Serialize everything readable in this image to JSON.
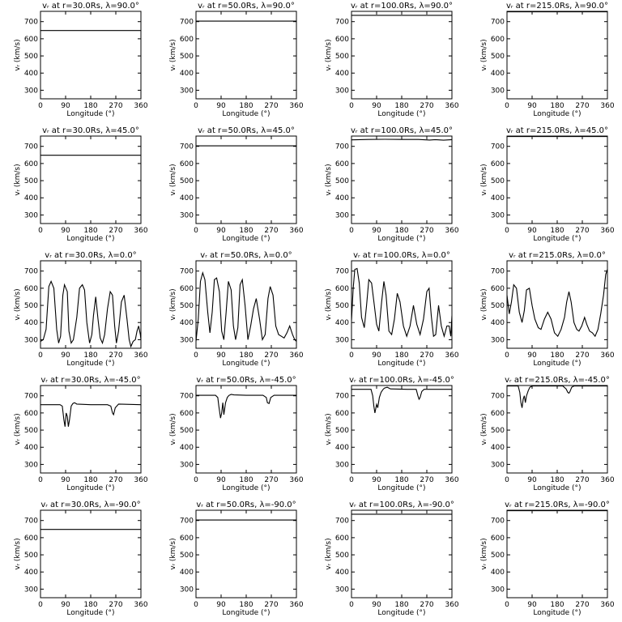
{
  "figure": {
    "xlabel": "Longitude (°)",
    "ylabel": "vᵣ (km/s)",
    "xticks": [
      0,
      90,
      180,
      270,
      360
    ],
    "yticks": [
      300,
      400,
      500,
      600,
      700
    ],
    "xlim": [
      0,
      360
    ],
    "ylim": [
      250,
      760
    ]
  },
  "chart_data": [
    {
      "type": "line",
      "title": "vᵣ at r=30.0Rs, λ=90.0°",
      "x": [
        0,
        360
      ],
      "y": [
        648,
        648
      ]
    },
    {
      "type": "line",
      "title": "vᵣ at r=50.0Rs, λ=90.0°",
      "x": [
        0,
        360
      ],
      "y": [
        703,
        703
      ]
    },
    {
      "type": "line",
      "title": "vᵣ at r=100.0Rs, λ=90.0°",
      "x": [
        0,
        360
      ],
      "y": [
        737,
        737
      ]
    },
    {
      "type": "line",
      "title": "vᵣ at r=215.0Rs, λ=90.0°",
      "x": [
        0,
        360
      ],
      "y": [
        757,
        757
      ]
    },
    {
      "type": "line",
      "title": "vᵣ at r=30.0Rs, λ=45.0°",
      "x": [
        0,
        360
      ],
      "y": [
        648,
        648
      ]
    },
    {
      "type": "line",
      "title": "vᵣ at r=50.0Rs, λ=45.0°",
      "x": [
        0,
        360
      ],
      "y": [
        703,
        703
      ]
    },
    {
      "type": "line",
      "title": "vᵣ at r=100.0Rs, λ=45.0°",
      "x": [
        0,
        60,
        120,
        180,
        240,
        280,
        300,
        330,
        360
      ],
      "y": [
        738,
        740,
        741,
        740,
        740,
        737,
        739,
        736,
        739
      ]
    },
    {
      "type": "line",
      "title": "vᵣ at r=215.0Rs, λ=45.0°",
      "x": [
        0,
        360
      ],
      "y": [
        757,
        757
      ]
    },
    {
      "type": "line",
      "title": "vᵣ at r=30.0Rs, λ=0.0°",
      "x": [
        0,
        10,
        20,
        30,
        38,
        48,
        58,
        65,
        72,
        80,
        86,
        96,
        102,
        110,
        118,
        130,
        140,
        150,
        158,
        166,
        176,
        184,
        190,
        198,
        206,
        214,
        222,
        230,
        240,
        250,
        258,
        266,
        272,
        280,
        290,
        300,
        310,
        318,
        324,
        332,
        340,
        346,
        352,
        358,
        360
      ],
      "y": [
        290,
        300,
        360,
        610,
        640,
        600,
        360,
        280,
        320,
        560,
        620,
        580,
        350,
        280,
        300,
        430,
        600,
        620,
        590,
        400,
        280,
        330,
        440,
        550,
        420,
        310,
        280,
        330,
        480,
        580,
        560,
        380,
        280,
        350,
        520,
        560,
        420,
        300,
        260,
        290,
        300,
        350,
        380,
        330,
        300
      ]
    },
    {
      "type": "line",
      "title": "vᵣ at r=50.0Rs, λ=0.0°",
      "x": [
        0,
        8,
        16,
        24,
        32,
        42,
        50,
        58,
        66,
        74,
        84,
        92,
        100,
        108,
        116,
        126,
        134,
        142,
        150,
        158,
        166,
        176,
        186,
        196,
        206,
        216,
        228,
        238,
        248,
        258,
        266,
        276,
        286,
        296,
        306,
        316,
        326,
        336,
        346,
        354,
        360
      ],
      "y": [
        290,
        420,
        640,
        690,
        650,
        460,
        340,
        460,
        650,
        660,
        580,
        350,
        300,
        460,
        640,
        590,
        380,
        300,
        370,
        620,
        650,
        500,
        300,
        380,
        480,
        540,
        420,
        300,
        330,
        540,
        610,
        560,
        380,
        330,
        320,
        310,
        340,
        380,
        330,
        300,
        290
      ]
    },
    {
      "type": "line",
      "title": "vᵣ at r=100.0Rs, λ=0.0°",
      "x": [
        0,
        6,
        12,
        20,
        28,
        36,
        46,
        54,
        62,
        72,
        82,
        90,
        98,
        108,
        116,
        124,
        134,
        144,
        154,
        164,
        174,
        186,
        198,
        210,
        222,
        234,
        246,
        258,
        270,
        278,
        286,
        294,
        302,
        312,
        322,
        332,
        342,
        350,
        356,
        360
      ],
      "y": [
        410,
        600,
        710,
        715,
        630,
        430,
        370,
        500,
        650,
        630,
        500,
        390,
        350,
        520,
        640,
        560,
        350,
        330,
        420,
        570,
        520,
        380,
        320,
        380,
        500,
        390,
        330,
        420,
        580,
        600,
        440,
        320,
        330,
        500,
        380,
        320,
        380,
        380,
        320,
        440
      ]
    },
    {
      "type": "line",
      "title": "vᵣ at r=215.0Rs, λ=0.0°",
      "x": [
        0,
        8,
        16,
        24,
        34,
        44,
        54,
        62,
        70,
        80,
        90,
        100,
        112,
        122,
        134,
        146,
        158,
        170,
        182,
        194,
        206,
        214,
        222,
        230,
        240,
        250,
        258,
        268,
        278,
        286,
        296,
        306,
        316,
        326,
        336,
        346,
        354,
        360
      ],
      "y": [
        560,
        450,
        520,
        620,
        600,
        460,
        400,
        470,
        590,
        600,
        500,
        420,
        370,
        360,
        420,
        460,
        420,
        340,
        320,
        360,
        430,
        520,
        580,
        520,
        400,
        360,
        350,
        380,
        430,
        390,
        350,
        340,
        320,
        360,
        450,
        560,
        680,
        710
      ]
    },
    {
      "type": "line",
      "title": "vᵣ at r=30.0Rs, λ=-45.0°",
      "x": [
        0,
        70,
        78,
        84,
        88,
        92,
        96,
        100,
        104,
        110,
        116,
        122,
        130,
        180,
        240,
        252,
        258,
        262,
        268,
        280,
        360
      ],
      "y": [
        648,
        648,
        640,
        560,
        520,
        600,
        580,
        520,
        560,
        640,
        655,
        660,
        652,
        648,
        648,
        640,
        600,
        590,
        630,
        652,
        648
      ]
    },
    {
      "type": "line",
      "title": "vᵣ at r=50.0Rs, λ=-45.0°",
      "x": [
        0,
        70,
        78,
        82,
        88,
        92,
        96,
        100,
        106,
        112,
        118,
        126,
        136,
        180,
        240,
        252,
        256,
        262,
        268,
        280,
        360
      ],
      "y": [
        703,
        703,
        690,
        640,
        570,
        600,
        660,
        590,
        660,
        690,
        702,
        708,
        705,
        703,
        703,
        690,
        660,
        655,
        690,
        703,
        703
      ]
    },
    {
      "type": "line",
      "title": "vᵣ at r=100.0Rs, λ=-45.0°",
      "x": [
        0,
        70,
        76,
        80,
        84,
        90,
        94,
        100,
        106,
        112,
        118,
        128,
        140,
        200,
        232,
        238,
        242,
        246,
        252,
        260,
        360
      ],
      "y": [
        738,
        738,
        700,
        640,
        600,
        650,
        630,
        690,
        720,
        735,
        745,
        750,
        740,
        738,
        738,
        700,
        680,
        690,
        725,
        738,
        738
      ]
    },
    {
      "type": "line",
      "title": "vᵣ at r=215.0Rs, λ=-45.0°",
      "x": [
        0,
        40,
        46,
        50,
        54,
        58,
        62,
        66,
        70,
        76,
        82,
        90,
        100,
        120,
        200,
        212,
        218,
        222,
        226,
        232,
        240,
        360
      ],
      "y": [
        757,
        757,
        720,
        660,
        630,
        680,
        700,
        660,
        700,
        730,
        750,
        757,
        758,
        757,
        757,
        740,
        720,
        715,
        725,
        750,
        757,
        757
      ]
    },
    {
      "type": "line",
      "title": "vᵣ at r=30.0Rs, λ=-90.0°",
      "x": [
        0,
        360
      ],
      "y": [
        648,
        648
      ]
    },
    {
      "type": "line",
      "title": "vᵣ at r=50.0Rs, λ=-90.0°",
      "x": [
        0,
        360
      ],
      "y": [
        703,
        703
      ]
    },
    {
      "type": "line",
      "title": "vᵣ at r=100.0Rs, λ=-90.0°",
      "x": [
        0,
        360
      ],
      "y": [
        737,
        737
      ]
    },
    {
      "type": "line",
      "title": "vᵣ at r=215.0Rs, λ=-90.0°",
      "x": [
        0,
        360
      ],
      "y": [
        757,
        757
      ]
    }
  ]
}
